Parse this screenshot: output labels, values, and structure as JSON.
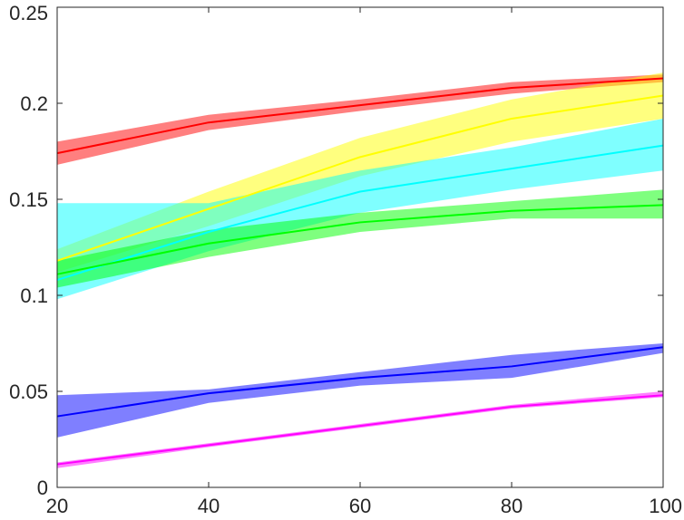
{
  "chart_data": {
    "type": "line",
    "title": "",
    "xlabel": "",
    "ylabel": "",
    "x": [
      20,
      40,
      60,
      80,
      100
    ],
    "xlim": [
      20,
      100
    ],
    "ylim": [
      0,
      0.25
    ],
    "xticks": [
      "20",
      "40",
      "60",
      "80",
      "100"
    ],
    "yticks": [
      "0",
      "0.05",
      "0.1",
      "0.15",
      "0.2",
      "0.25"
    ],
    "grid": false,
    "legend": "none",
    "series": [
      {
        "color": "#ff0000",
        "values": [
          0.174,
          0.19,
          0.199,
          0.208,
          0.213
        ],
        "lower": [
          0.168,
          0.186,
          0.196,
          0.205,
          0.211
        ],
        "upper": [
          0.18,
          0.194,
          0.202,
          0.211,
          0.215
        ]
      },
      {
        "color": "#ffff00",
        "values": [
          0.118,
          0.145,
          0.172,
          0.192,
          0.204
        ],
        "lower": [
          0.112,
          0.136,
          0.162,
          0.18,
          0.192
        ],
        "upper": [
          0.124,
          0.154,
          0.182,
          0.202,
          0.216
        ]
      },
      {
        "color": "#00ffff",
        "values": [
          0.108,
          0.133,
          0.154,
          0.166,
          0.178
        ],
        "lower": [
          0.098,
          0.123,
          0.143,
          0.155,
          0.165
        ],
        "upper": [
          0.148,
          0.148,
          0.165,
          0.177,
          0.192
        ]
      },
      {
        "color": "#00ff00",
        "values": [
          0.111,
          0.127,
          0.138,
          0.144,
          0.147
        ],
        "lower": [
          0.104,
          0.12,
          0.133,
          0.14,
          0.14
        ],
        "upper": [
          0.118,
          0.134,
          0.143,
          0.149,
          0.155
        ]
      },
      {
        "color": "#0000ff",
        "values": [
          0.037,
          0.049,
          0.057,
          0.063,
          0.073
        ],
        "lower": [
          0.026,
          0.044,
          0.053,
          0.057,
          0.07
        ],
        "upper": [
          0.048,
          0.051,
          0.06,
          0.069,
          0.075
        ]
      },
      {
        "color": "#ff00ff",
        "values": [
          0.012,
          0.022,
          0.032,
          0.042,
          0.048
        ],
        "lower": [
          0.01,
          0.021,
          0.031,
          0.041,
          0.047
        ],
        "upper": [
          0.013,
          0.023,
          0.033,
          0.043,
          0.05
        ]
      }
    ]
  }
}
